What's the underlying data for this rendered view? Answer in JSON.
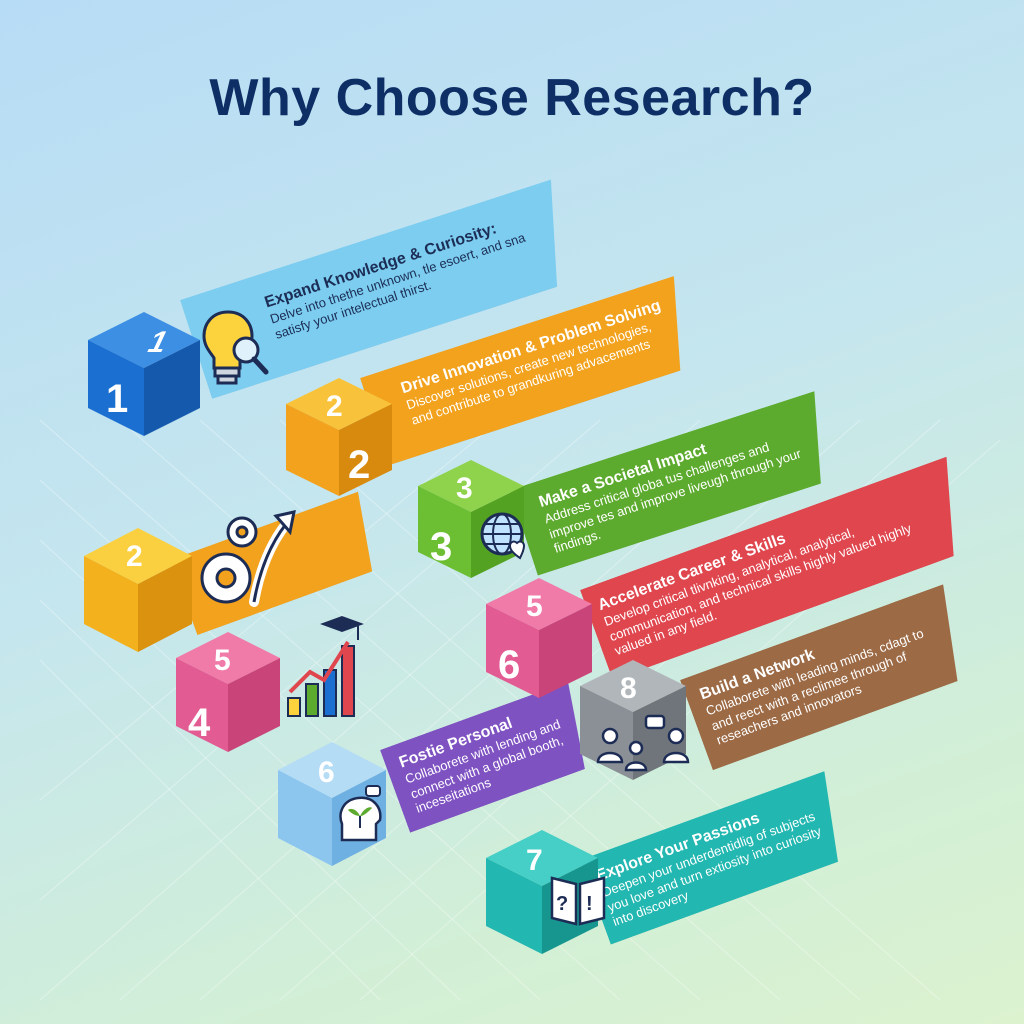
{
  "title": "Why Choose Research?",
  "colors": {
    "title": "#0e2f66",
    "blue": "#1b6fd1",
    "light_blue": "#7ccdf0",
    "orange": "#f2a21d",
    "green": "#5dab2e",
    "red": "#e0464e",
    "pink": "#e25c93",
    "brown": "#9c6a45",
    "gray": "#8a9096",
    "purple": "#7f52c2",
    "teal": "#22b7b0"
  },
  "cards": [
    {
      "cube_top": "1",
      "cube_front": "1",
      "heading": "Expand Knowledge & Curiosity:",
      "desc": "Delve into thethe unknown, tle esoert, and sna satisfy your intelectual thirst.",
      "icon": "lightbulb-magnifier-icon"
    },
    {
      "cube_top": "2",
      "cube_front": "2",
      "heading": "Drive Innovation & Problem Solving",
      "desc": "Discover solutions, create new technologies, and contribute to grandkuring advacements",
      "icon": "none"
    },
    {
      "cube_top": "3",
      "cube_front": "3",
      "heading": "Make a Societal Impact",
      "desc": "Address critical globa tus challenges and improve tes and improve liveugh through your findings.",
      "icon": "globe-heart-icon"
    },
    {
      "cube_top": "2",
      "cube_front": "",
      "heading": "",
      "desc": "",
      "icon": "gears-arrow-icon"
    },
    {
      "cube_top": "5",
      "cube_front": "6",
      "heading": "Accelerate Career & Skills",
      "desc": "Develop critical tlivnking, analytical, analytical, communication, and technical skills highly valued highly valued in any field.",
      "icon": "none"
    },
    {
      "cube_top": "5",
      "cube_front": "4",
      "heading": "",
      "desc": "",
      "icon": "growth-chart-graduation-icon"
    },
    {
      "cube_top": "8",
      "cube_front": "",
      "heading": "Build a Network",
      "desc": "Collaborete with leading minds, cdagt to and reect with a reclimee through of reseachers and innovators",
      "icon": "people-network-icon"
    },
    {
      "cube_top": "6",
      "cube_front": "",
      "heading": "Fostie Personal",
      "desc": "Collaborete with lending and connect with a global booth, inceseitations",
      "icon": "head-plant-icon"
    },
    {
      "cube_top": "7",
      "cube_front": "",
      "heading": "Explore Your Passions",
      "desc": "Deepen your underdentidlig of subjects you love and turn extiosity into curiosity into discovery",
      "icon": "book-question-icon"
    }
  ]
}
